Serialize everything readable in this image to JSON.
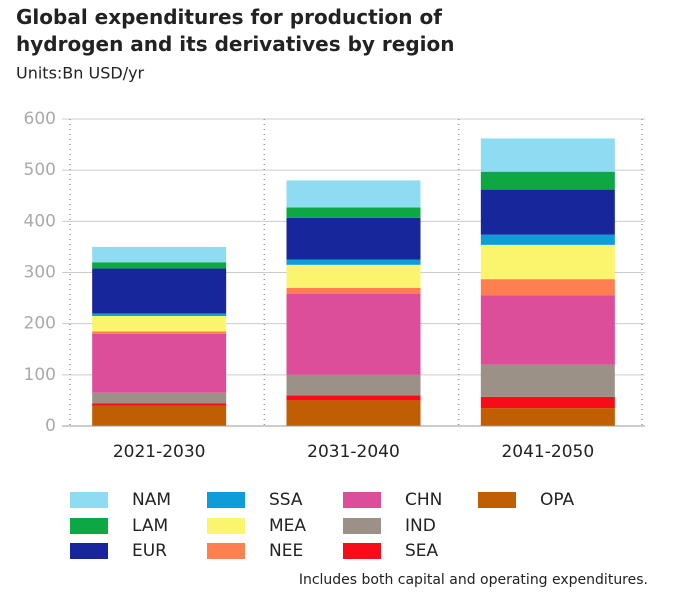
{
  "chart_data": {
    "type": "stacked_bar",
    "title": "Global expenditures for production of hydrogen and its derivatives by region",
    "subtitle": "Units:Bn USD/yr",
    "note": "Includes both capital and operating expenditures.",
    "categories": [
      "2021-2030",
      "2031-2040",
      "2041-2050"
    ],
    "series": [
      {
        "name": "NAM",
        "color": "#8ddcf2",
        "values": [
          30,
          53,
          65
        ]
      },
      {
        "name": "LAM",
        "color": "#0da844",
        "values": [
          12,
          20,
          35
        ]
      },
      {
        "name": "EUR",
        "color": "#17269b",
        "values": [
          88,
          82,
          88
        ]
      },
      {
        "name": "SSA",
        "color": "#0e9dd8",
        "values": [
          5,
          10,
          20
        ]
      },
      {
        "name": "MEA",
        "color": "#fbf56e",
        "values": [
          30,
          45,
          67
        ]
      },
      {
        "name": "NEE",
        "color": "#ff7f50",
        "values": [
          5,
          12,
          32
        ]
      },
      {
        "name": "CHN",
        "color": "#dc4d9a",
        "values": [
          115,
          158,
          135
        ]
      },
      {
        "name": "IND",
        "color": "#9b9186",
        "values": [
          21,
          40,
          63
        ]
      },
      {
        "name": "SEA",
        "color": "#f70d1a",
        "values": [
          4,
          10,
          22
        ]
      },
      {
        "name": "OPA",
        "color": "#c05e04",
        "values": [
          40,
          50,
          35
        ]
      }
    ],
    "ylim": [
      0,
      600
    ],
    "yticks": [
      0,
      100,
      200,
      300,
      400,
      500,
      600
    ],
    "grid": true
  }
}
